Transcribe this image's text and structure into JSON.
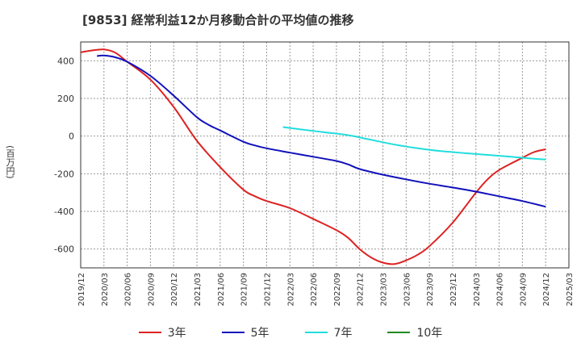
{
  "title": "[9853]  経常利益12か月移動合計の平均値の推移",
  "ylabel": "(百万円)",
  "chart_data": {
    "type": "line",
    "x_ticks": [
      "2019/12",
      "2020/03",
      "2020/06",
      "2020/09",
      "2020/12",
      "2021/03",
      "2021/06",
      "2021/09",
      "2021/12",
      "2022/03",
      "2022/06",
      "2022/09",
      "2022/12",
      "2023/03",
      "2023/06",
      "2023/09",
      "2023/12",
      "2024/03",
      "2024/06",
      "2024/09",
      "2024/12",
      "2025/03"
    ],
    "y_ticks": [
      400,
      200,
      0,
      -200,
      -400,
      -600
    ],
    "ylim": [
      -700,
      500
    ],
    "grid": true,
    "legend_position": "bottom",
    "series": [
      {
        "name": "3年",
        "color": "#dd2222",
        "points": [
          [
            0,
            445
          ],
          [
            0.5,
            455
          ],
          [
            1,
            460
          ],
          [
            1.5,
            442
          ],
          [
            2,
            395
          ],
          [
            3,
            300
          ],
          [
            4,
            155
          ],
          [
            5,
            -25
          ],
          [
            6,
            -165
          ],
          [
            7,
            -285
          ],
          [
            7.5,
            -320
          ],
          [
            8,
            -345
          ],
          [
            9,
            -383
          ],
          [
            10,
            -440
          ],
          [
            11,
            -500
          ],
          [
            11.5,
            -540
          ],
          [
            12,
            -600
          ],
          [
            12.5,
            -645
          ],
          [
            13,
            -672
          ],
          [
            13.5,
            -680
          ],
          [
            14,
            -660
          ],
          [
            14.5,
            -630
          ],
          [
            15,
            -585
          ],
          [
            16,
            -460
          ],
          [
            17,
            -300
          ],
          [
            17.5,
            -230
          ],
          [
            18,
            -180
          ],
          [
            19,
            -115
          ],
          [
            19.5,
            -85
          ],
          [
            20,
            -70
          ]
        ]
      },
      {
        "name": "5年",
        "color": "#1111bb",
        "points": [
          [
            0.7,
            425
          ],
          [
            1,
            428
          ],
          [
            1.5,
            418
          ],
          [
            2,
            395
          ],
          [
            3,
            320
          ],
          [
            4,
            215
          ],
          [
            5,
            100
          ],
          [
            5.5,
            60
          ],
          [
            6,
            30
          ],
          [
            7,
            -30
          ],
          [
            7.5,
            -50
          ],
          [
            8,
            -65
          ],
          [
            9,
            -88
          ],
          [
            10,
            -110
          ],
          [
            11,
            -132
          ],
          [
            11.5,
            -150
          ],
          [
            12,
            -175
          ],
          [
            13,
            -205
          ],
          [
            14,
            -230
          ],
          [
            15,
            -253
          ],
          [
            16,
            -273
          ],
          [
            17,
            -295
          ],
          [
            18,
            -320
          ],
          [
            19,
            -345
          ],
          [
            20,
            -375
          ]
        ]
      },
      {
        "name": "7年",
        "color": "#22dddd",
        "points": [
          [
            8.7,
            48
          ],
          [
            9.5,
            35
          ],
          [
            10.5,
            20
          ],
          [
            11.5,
            5
          ],
          [
            12.5,
            -20
          ],
          [
            13.5,
            -45
          ],
          [
            14.5,
            -65
          ],
          [
            15.5,
            -80
          ],
          [
            16.5,
            -90
          ],
          [
            17.5,
            -100
          ],
          [
            18.5,
            -110
          ],
          [
            19.5,
            -120
          ],
          [
            20,
            -125
          ]
        ]
      },
      {
        "name": "10年",
        "color": "#228822",
        "points": []
      }
    ]
  }
}
